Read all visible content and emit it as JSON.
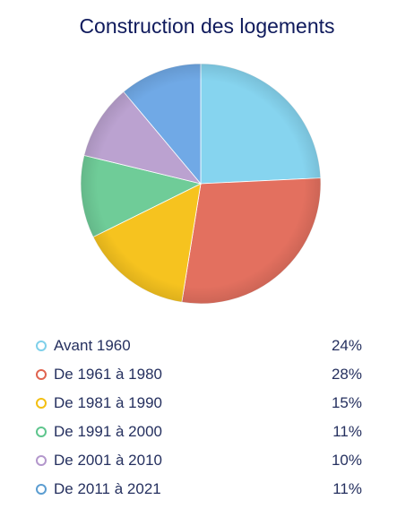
{
  "chart_data": {
    "type": "pie",
    "title": "Construction des logements",
    "legend_position": "bottom",
    "categories": [
      "Avant 1960",
      "De 1961 à 1980",
      "De 1981 à 1990",
      "De 1991 à 2000",
      "De 2001 à 2010",
      "De 2011 à 2021"
    ],
    "values": [
      24,
      28,
      15,
      11,
      10,
      11
    ],
    "value_labels": [
      "24%",
      "28%",
      "15%",
      "11%",
      "10%",
      "11%"
    ],
    "unit": "%",
    "colors": [
      "#86d4ef",
      "#e3705f",
      "#f6c31f",
      "#6fcc98",
      "#bba2d0",
      "#70a9e6"
    ],
    "legend_dot_colors": [
      "#7fd0ea",
      "#e06450",
      "#f3bf12",
      "#5ec58d",
      "#b397cc",
      "#5b9dd1"
    ]
  }
}
